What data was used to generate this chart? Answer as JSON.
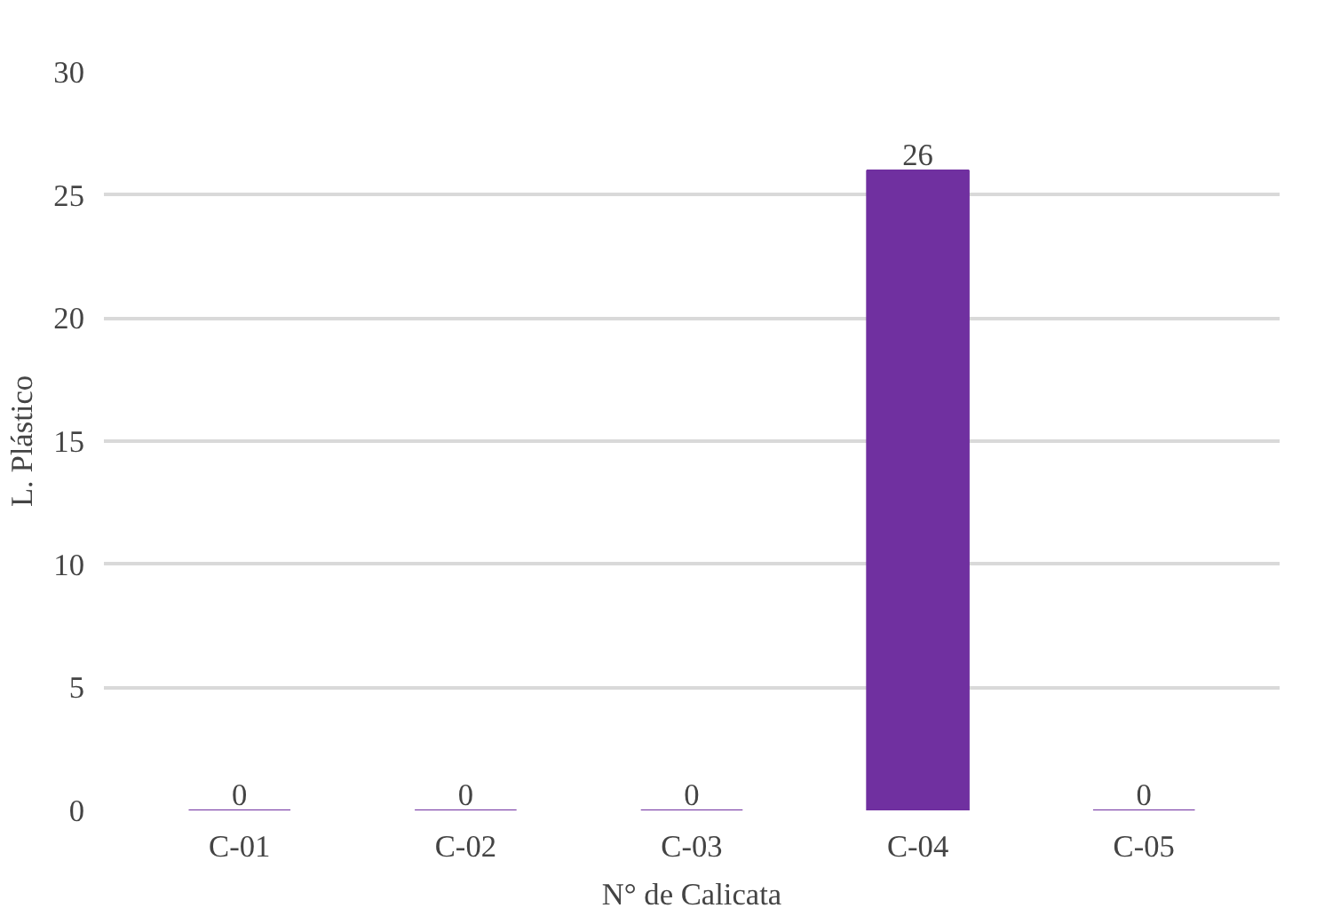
{
  "chart_data": {
    "type": "bar",
    "xlabel": "N° de Calicata",
    "ylabel": "L. Plástico",
    "categories": [
      "C-01",
      "C-02",
      "C-03",
      "C-04",
      "C-05"
    ],
    "values": [
      0,
      0,
      0,
      26,
      0
    ],
    "color": "#7030a0",
    "ylim": [
      0,
      30
    ],
    "yticks": [
      0,
      5,
      10,
      15,
      20,
      25,
      30
    ],
    "grid": "y",
    "data_labels": true
  }
}
